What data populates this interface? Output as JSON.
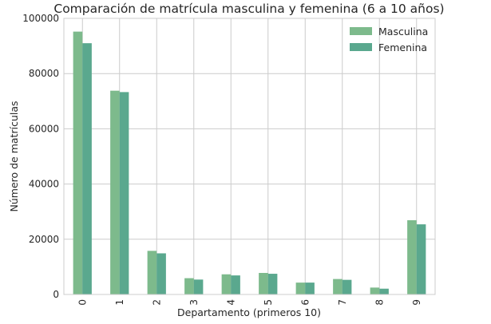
{
  "chart_data": {
    "type": "bar",
    "title": "Comparación de matrícula masculina y femenina (6 a 10 años)",
    "xlabel": "Departamento (primeros 10)",
    "ylabel": "Número de matrículas",
    "categories": [
      "0",
      "1",
      "2",
      "3",
      "4",
      "5",
      "6",
      "7",
      "8",
      "9"
    ],
    "series": [
      {
        "name": "Masculina",
        "color": "#7dba8c",
        "values": [
          95200,
          73800,
          15800,
          5900,
          7300,
          7800,
          4300,
          5600,
          2500,
          26900
        ]
      },
      {
        "name": "Femenina",
        "color": "#5aa88e",
        "values": [
          91000,
          73300,
          14900,
          5400,
          6900,
          7500,
          4300,
          5300,
          2100,
          25400
        ]
      }
    ],
    "ylim": [
      0,
      100000
    ],
    "yticks": [
      "0",
      "20000",
      "40000",
      "60000",
      "80000",
      "100000"
    ],
    "ytick_values": [
      0,
      20000,
      40000,
      60000,
      80000,
      100000
    ],
    "grid": true,
    "legend_position": "top-right"
  }
}
